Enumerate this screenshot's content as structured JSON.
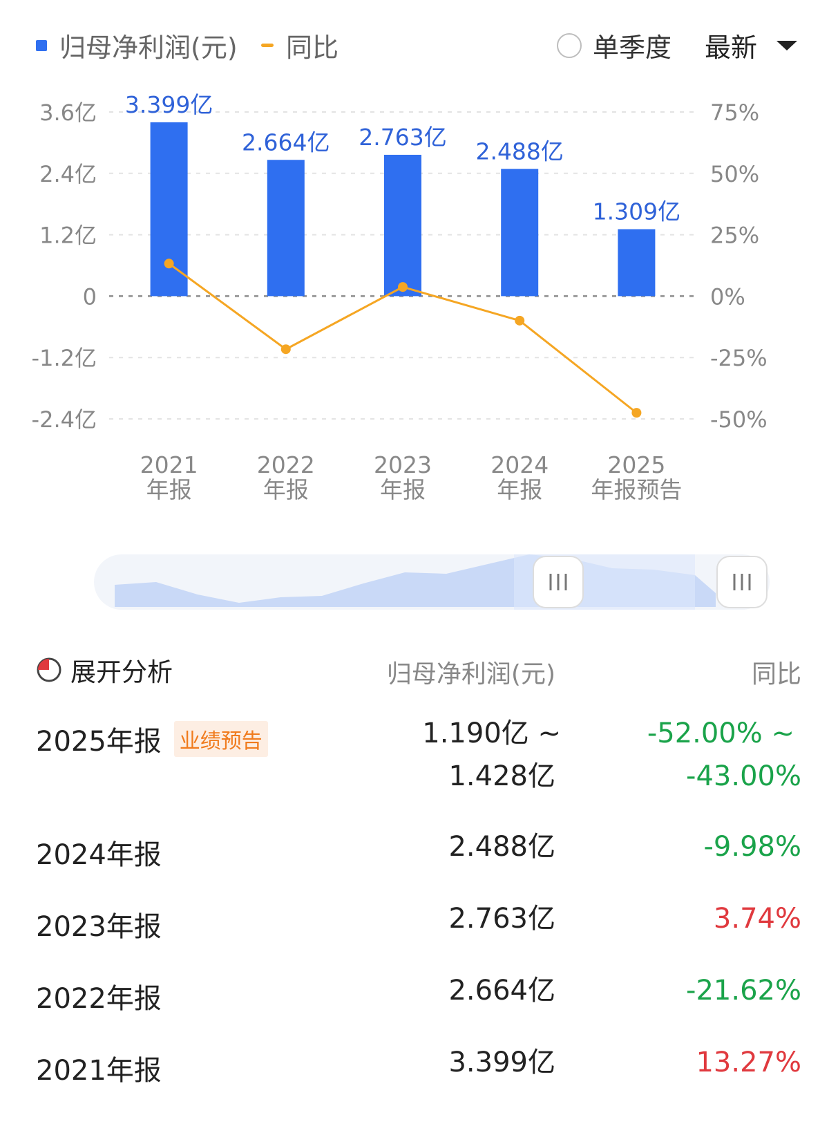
{
  "legend": {
    "bar_label": "归母净利润(元)",
    "line_label": "同比",
    "single_quarter_label": "单季度",
    "dropdown_value": "最新"
  },
  "colors": {
    "bar": "#2f6ff0",
    "line": "#f5a623",
    "positive": "#e0393e",
    "negative": "#1aa34a",
    "badge_text": "#f07b1d",
    "badge_bg": "#fdeee3"
  },
  "chart_data": {
    "type": "bar",
    "categories": [
      {
        "year": "2021",
        "label": "年报"
      },
      {
        "year": "2022",
        "label": "年报"
      },
      {
        "year": "2023",
        "label": "年报"
      },
      {
        "year": "2024",
        "label": "年报"
      },
      {
        "year": "2025",
        "label": "年报预告"
      }
    ],
    "series": [
      {
        "name": "归母净利润(元)",
        "values": [
          3.399,
          2.664,
          2.763,
          2.488,
          1.309
        ],
        "labels": [
          "3.399亿",
          "2.664亿",
          "2.763亿",
          "2.488亿",
          "1.309亿"
        ]
      },
      {
        "name": "同比",
        "values": [
          13.27,
          -21.62,
          3.74,
          -9.98,
          -47.5
        ]
      }
    ],
    "y_left": {
      "ticks": [
        "3.6亿",
        "2.4亿",
        "1.2亿",
        "0",
        "-1.2亿",
        "-2.4亿"
      ],
      "range": [
        -2.4,
        3.6
      ]
    },
    "y_right": {
      "ticks": [
        "75%",
        "50%",
        "25%",
        "0%",
        "-25%",
        "-50%"
      ],
      "range": [
        -50,
        75
      ]
    },
    "grid": true
  },
  "table": {
    "header": {
      "expand_label": "展开分析",
      "value_col": "归母净利润(元)",
      "yoy_col": "同比"
    },
    "rows": [
      {
        "period": "2025年报",
        "badge": "业绩预告",
        "value_lines": [
          "1.190亿 ~",
          "1.428亿"
        ],
        "yoy_lines": [
          "-52.00% ~",
          "-43.00%"
        ],
        "sign": "neg"
      },
      {
        "period": "2024年报",
        "badge": "",
        "value_lines": [
          "2.488亿"
        ],
        "yoy_lines": [
          "-9.98%"
        ],
        "sign": "neg"
      },
      {
        "period": "2023年报",
        "badge": "",
        "value_lines": [
          "2.763亿"
        ],
        "yoy_lines": [
          "3.74%"
        ],
        "sign": "pos"
      },
      {
        "period": "2022年报",
        "badge": "",
        "value_lines": [
          "2.664亿"
        ],
        "yoy_lines": [
          "-21.62%"
        ],
        "sign": "neg"
      },
      {
        "period": "2021年报",
        "badge": "",
        "value_lines": [
          "3.399亿"
        ],
        "yoy_lines": [
          "13.27%"
        ],
        "sign": "pos"
      }
    ]
  }
}
